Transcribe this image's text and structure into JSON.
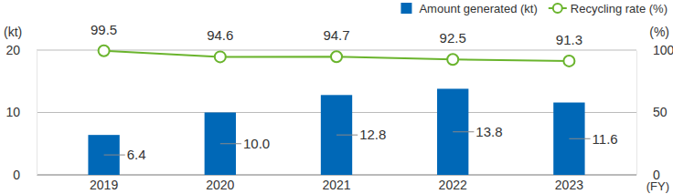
{
  "chart_data": {
    "type": "bar",
    "categories": [
      "2019",
      "2020",
      "2021",
      "2022",
      "2023"
    ],
    "series": [
      {
        "name": "Amount generated (kt)",
        "type": "bar",
        "color": "#0068b7",
        "values": [
          6.4,
          10.0,
          12.8,
          13.8,
          11.6
        ],
        "value_labels": [
          "6.4",
          "10.0",
          "12.8",
          "13.8",
          "11.6"
        ]
      },
      {
        "name": "Recycling rate (%)",
        "type": "line",
        "axis": "y2",
        "color": "#6ab42d",
        "marker": "circle",
        "values": [
          99.5,
          94.6,
          94.7,
          92.5,
          91.3
        ]
      }
    ],
    "y_label": "(kt)",
    "y2_label": "(%)",
    "x_label": "(FY)",
    "ylim": [
      0,
      20
    ],
    "yticks": [
      0,
      10,
      20
    ],
    "y2lim": [
      0,
      100
    ],
    "y2ticks": [
      0,
      50,
      100
    ],
    "grid": true,
    "legend": "top-right",
    "data_labels": true
  }
}
